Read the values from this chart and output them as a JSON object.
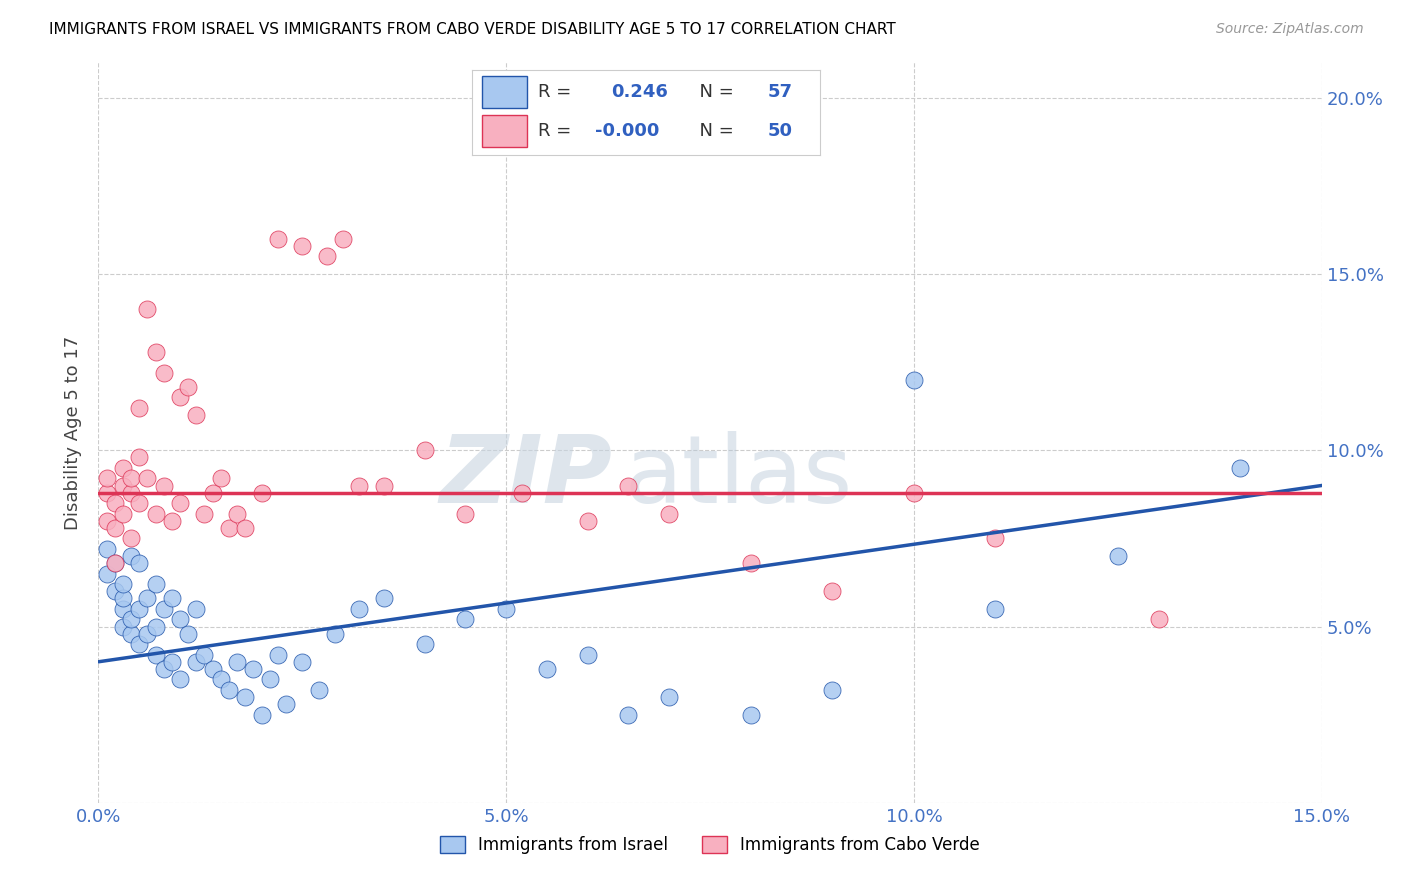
{
  "title": "IMMIGRANTS FROM ISRAEL VS IMMIGRANTS FROM CABO VERDE DISABILITY AGE 5 TO 17 CORRELATION CHART",
  "source": "Source: ZipAtlas.com",
  "ylabel": "Disability Age 5 to 17",
  "xlim": [
    0.0,
    0.15
  ],
  "ylim": [
    0.0,
    0.21
  ],
  "xtick_vals": [
    0.0,
    0.05,
    0.1,
    0.15
  ],
  "ytick_vals": [
    0.0,
    0.05,
    0.1,
    0.15,
    0.2
  ],
  "xticklabels": [
    "0.0%",
    "5.0%",
    "10.0%",
    "15.0%"
  ],
  "yticklabels": [
    "",
    "5.0%",
    "10.0%",
    "15.0%",
    "20.0%"
  ],
  "legend_label1": "Immigrants from Israel",
  "legend_label2": "Immigrants from Cabo Verde",
  "R1": "0.246",
  "N1": "57",
  "R2": "-0.000",
  "N2": "50",
  "color_israel": "#A8C8F0",
  "color_cabo": "#F8B0C0",
  "color_trend_israel": "#2255AA",
  "color_trend_cabo": "#DD3355",
  "watermark_zip": "ZIP",
  "watermark_atlas": "atlas",
  "blue_x": [
    0.001,
    0.001,
    0.002,
    0.002,
    0.003,
    0.003,
    0.003,
    0.003,
    0.004,
    0.004,
    0.004,
    0.005,
    0.005,
    0.005,
    0.006,
    0.006,
    0.007,
    0.007,
    0.007,
    0.008,
    0.008,
    0.009,
    0.009,
    0.01,
    0.01,
    0.011,
    0.012,
    0.012,
    0.013,
    0.014,
    0.015,
    0.016,
    0.017,
    0.018,
    0.019,
    0.02,
    0.021,
    0.022,
    0.023,
    0.025,
    0.027,
    0.029,
    0.032,
    0.035,
    0.04,
    0.045,
    0.05,
    0.055,
    0.06,
    0.065,
    0.07,
    0.08,
    0.09,
    0.1,
    0.11,
    0.125,
    0.14
  ],
  "blue_y": [
    0.072,
    0.065,
    0.068,
    0.06,
    0.055,
    0.058,
    0.05,
    0.062,
    0.048,
    0.052,
    0.07,
    0.045,
    0.055,
    0.068,
    0.048,
    0.058,
    0.042,
    0.05,
    0.062,
    0.038,
    0.055,
    0.04,
    0.058,
    0.035,
    0.052,
    0.048,
    0.04,
    0.055,
    0.042,
    0.038,
    0.035,
    0.032,
    0.04,
    0.03,
    0.038,
    0.025,
    0.035,
    0.042,
    0.028,
    0.04,
    0.032,
    0.048,
    0.055,
    0.058,
    0.045,
    0.052,
    0.055,
    0.038,
    0.042,
    0.025,
    0.03,
    0.025,
    0.032,
    0.12,
    0.055,
    0.07,
    0.095
  ],
  "pink_x": [
    0.001,
    0.001,
    0.001,
    0.002,
    0.002,
    0.002,
    0.003,
    0.003,
    0.003,
    0.004,
    0.004,
    0.004,
    0.005,
    0.005,
    0.005,
    0.006,
    0.006,
    0.007,
    0.007,
    0.008,
    0.008,
    0.009,
    0.01,
    0.01,
    0.011,
    0.012,
    0.013,
    0.014,
    0.015,
    0.016,
    0.017,
    0.018,
    0.02,
    0.022,
    0.025,
    0.028,
    0.03,
    0.032,
    0.035,
    0.04,
    0.045,
    0.052,
    0.06,
    0.065,
    0.07,
    0.08,
    0.09,
    0.1,
    0.11,
    0.13
  ],
  "pink_y": [
    0.088,
    0.092,
    0.08,
    0.085,
    0.078,
    0.068,
    0.09,
    0.082,
    0.095,
    0.088,
    0.075,
    0.092,
    0.098,
    0.112,
    0.085,
    0.14,
    0.092,
    0.128,
    0.082,
    0.122,
    0.09,
    0.08,
    0.115,
    0.085,
    0.118,
    0.11,
    0.082,
    0.088,
    0.092,
    0.078,
    0.082,
    0.078,
    0.088,
    0.16,
    0.158,
    0.155,
    0.16,
    0.09,
    0.09,
    0.1,
    0.082,
    0.088,
    0.08,
    0.09,
    0.082,
    0.068,
    0.06,
    0.088,
    0.075,
    0.052
  ],
  "trend_blue_x0": 0.0,
  "trend_blue_x1": 0.15,
  "trend_blue_y0": 0.04,
  "trend_blue_y1": 0.09,
  "trend_pink_y": 0.088
}
